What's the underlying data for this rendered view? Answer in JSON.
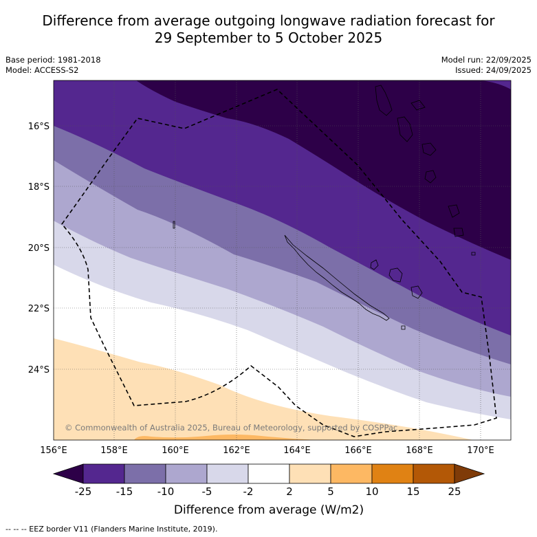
{
  "title": {
    "line1": "Difference from average outgoing longwave radiation forecast for",
    "line2": "29 September to 5 October 2025"
  },
  "meta": {
    "base_period": "Base period: 1981-2018",
    "model": "Model: ACCESS-S2",
    "model_run": "Model run: 22/09/2025",
    "issued": "Issued: 24/09/2025"
  },
  "map": {
    "lat_labels": [
      "16°S",
      "18°S",
      "20°S",
      "22°S",
      "24°S"
    ],
    "lon_labels": [
      "156°E",
      "158°E",
      "160°E",
      "162°E",
      "164°E",
      "166°E",
      "168°E",
      "170°E"
    ],
    "copyright": "© Commonwealth of Australia 2025, Bureau of Meteorology, supported by COSPPac"
  },
  "colorbar": {
    "ticks": [
      "-25",
      "-15",
      "-10",
      "-5",
      "-2",
      "2",
      "5",
      "10",
      "15",
      "25"
    ],
    "label": "Difference from average (W/m2)",
    "colors": {
      "below_min": "#2d0048",
      "bins": [
        "#54278f",
        "#7c6fa9",
        "#ada7cf",
        "#d8d8ea",
        "#ffffff",
        "#fee0b6",
        "#fdb863",
        "#e08214",
        "#b35806"
      ],
      "above_max": "#7f3b08"
    }
  },
  "footer": {
    "legend": "--  --  -- EEZ border V11 (Flanders Marine Institute, 2019)."
  }
}
